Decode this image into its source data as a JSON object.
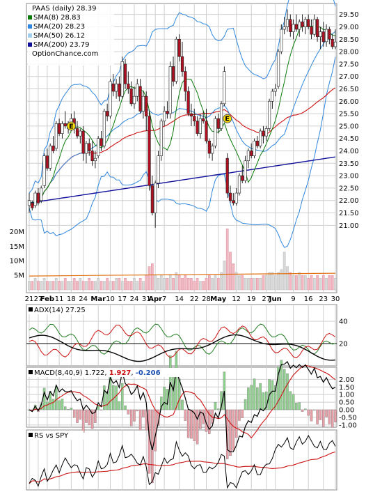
{
  "chart_data": {
    "type": "stock-chart",
    "ticker_label": "PAAS (daily) 28.39",
    "watermark": "OptionChance.com",
    "colors": {
      "sma8": "#0a7a0a",
      "sma20": "#2e86de",
      "sma50": "#e6d84a",
      "sma200": "#10109a",
      "lower_band": "#2e86de",
      "ema": "#cc1111",
      "up": "#e8e8e8",
      "down": "#b01020",
      "adx": "#000000",
      "plus_di": "#1d7a1d",
      "minus_di": "#cc1111",
      "macd": "#000000",
      "signal": "#cc1111",
      "hist_up": "#8fd08f",
      "hist_down": "#e8a0a8",
      "rs": "#000000",
      "rs_ma": "#cc1111",
      "vol_ma": "#e07010"
    },
    "legend": [
      {
        "label": "PAAS (daily) 28.39",
        "color": ""
      },
      {
        "label": "SMA(8) 28.83",
        "color": "#0a7a0a"
      },
      {
        "label": "SMA(20) 28.23",
        "color": "#2e86de"
      },
      {
        "label": "SMA(50) 26.12",
        "color": "#9fd0f0"
      },
      {
        "label": "SMA(200) 23.79",
        "color": "#10109a"
      },
      {
        "label": "OptionChance.com",
        "color": ""
      }
    ],
    "price_axis": [
      "29.50",
      "29.00",
      "28.50",
      "28.00",
      "27.50",
      "27.00",
      "26.50",
      "26.00",
      "25.50",
      "25.00",
      "24.50",
      "24.00",
      "23.50",
      "23.00",
      "22.50",
      "22.00",
      "21.50",
      "21.00"
    ],
    "price_range": [
      20.7,
      29.8
    ],
    "volume_axis": [
      "20M",
      "15M",
      "10M",
      "5M"
    ],
    "volume_max": 22,
    "x_labels": [
      "21",
      "27",
      "Feb",
      "11",
      "18",
      "24",
      "Mar",
      "10",
      "17",
      "24",
      "31",
      "Apr",
      "7",
      "14",
      "22",
      "28",
      "May",
      "12",
      "19",
      "27",
      "Jun",
      "9",
      "16",
      "23",
      "30"
    ],
    "x_label_idx": [
      0,
      3,
      6,
      10,
      14,
      18,
      23,
      27,
      31,
      35,
      39,
      42,
      45,
      50,
      55,
      59,
      63,
      69,
      74,
      79,
      82,
      88,
      93,
      98,
      102
    ],
    "ohlc": [
      [
        21.8,
        22.3,
        21.5,
        22.0
      ],
      [
        21.9,
        22.0,
        21.6,
        21.7
      ],
      [
        21.8,
        22.4,
        21.7,
        22.3
      ],
      [
        22.3,
        22.5,
        21.8,
        21.9
      ],
      [
        22.0,
        22.6,
        21.9,
        22.5
      ],
      [
        22.6,
        23.9,
        22.5,
        23.8
      ],
      [
        23.8,
        24.1,
        23.2,
        23.3
      ],
      [
        23.3,
        24.3,
        23.2,
        24.2
      ],
      [
        24.2,
        24.6,
        23.9,
        24.0
      ],
      [
        24.1,
        25.2,
        24.0,
        25.1
      ],
      [
        25.1,
        25.3,
        24.6,
        24.7
      ],
      [
        24.7,
        25.2,
        24.5,
        25.1
      ],
      [
        25.1,
        25.6,
        24.9,
        25.0
      ],
      [
        24.9,
        25.2,
        24.7,
        25.1
      ],
      [
        25.1,
        25.5,
        24.8,
        25.3
      ],
      [
        25.3,
        25.6,
        24.7,
        24.9
      ],
      [
        24.9,
        25.2,
        24.5,
        24.6
      ],
      [
        24.6,
        24.9,
        24.3,
        24.8
      ],
      [
        24.8,
        25.0,
        23.6,
        23.9
      ],
      [
        23.9,
        24.4,
        23.5,
        24.3
      ],
      [
        24.3,
        24.5,
        23.8,
        24.0
      ],
      [
        24.0,
        24.4,
        23.4,
        23.6
      ],
      [
        23.6,
        24.0,
        23.3,
        23.7
      ],
      [
        23.8,
        24.6,
        23.7,
        24.5
      ],
      [
        24.5,
        24.8,
        24.0,
        24.2
      ],
      [
        24.2,
        25.7,
        24.1,
        25.6
      ],
      [
        25.6,
        25.9,
        25.2,
        25.4
      ],
      [
        25.4,
        26.9,
        25.3,
        26.8
      ],
      [
        26.7,
        27.1,
        26.2,
        26.4
      ],
      [
        26.4,
        26.9,
        26.1,
        26.7
      ],
      [
        26.7,
        27.0,
        26.0,
        26.2
      ],
      [
        26.2,
        27.8,
        26.1,
        27.6
      ],
      [
        27.5,
        27.7,
        26.5,
        26.7
      ],
      [
        26.7,
        27.2,
        26.3,
        26.5
      ],
      [
        26.5,
        26.8,
        25.8,
        25.9
      ],
      [
        25.9,
        26.6,
        25.7,
        26.2
      ],
      [
        26.2,
        26.9,
        26.0,
        26.7
      ],
      [
        26.6,
        26.9,
        25.5,
        25.6
      ],
      [
        25.6,
        26.4,
        25.3,
        26.2
      ],
      [
        26.2,
        26.4,
        24.8,
        25.4
      ],
      [
        25.4,
        25.6,
        22.4,
        22.6
      ],
      [
        22.6,
        23.0,
        21.4,
        21.5
      ],
      [
        21.5,
        22.8,
        20.9,
        22.7
      ],
      [
        22.7,
        24.0,
        22.5,
        23.8
      ],
      [
        23.8,
        25.3,
        23.6,
        25.2
      ],
      [
        25.2,
        25.8,
        25.0,
        25.6
      ],
      [
        25.6,
        26.0,
        25.3,
        25.5
      ],
      [
        25.5,
        27.6,
        25.3,
        27.4
      ],
      [
        27.4,
        27.8,
        26.6,
        26.8
      ],
      [
        26.8,
        28.6,
        26.7,
        28.5
      ],
      [
        28.5,
        28.7,
        27.6,
        27.8
      ],
      [
        27.8,
        28.4,
        27.0,
        27.2
      ],
      [
        27.2,
        27.4,
        26.0,
        26.4
      ],
      [
        26.4,
        26.6,
        25.4,
        25.5
      ],
      [
        25.5,
        25.9,
        25.0,
        25.4
      ],
      [
        25.4,
        25.7,
        25.0,
        25.2
      ],
      [
        25.2,
        25.4,
        24.6,
        24.7
      ],
      [
        24.7,
        25.5,
        24.5,
        25.3
      ],
      [
        25.3,
        25.6,
        25.1,
        25.2
      ],
      [
        25.2,
        25.7,
        24.3,
        24.4
      ],
      [
        24.4,
        24.5,
        23.7,
        23.9
      ],
      [
        23.9,
        24.3,
        23.6,
        24.2
      ],
      [
        24.2,
        25.4,
        24.1,
        25.3
      ],
      [
        25.3,
        25.5,
        24.7,
        24.9
      ],
      [
        24.9,
        26.0,
        24.8,
        25.9
      ],
      [
        25.9,
        27.4,
        25.8,
        27.2
      ],
      [
        23.7,
        23.9,
        22.1,
        22.3
      ],
      [
        22.3,
        22.6,
        21.9,
        22.0
      ],
      [
        22.0,
        22.3,
        21.8,
        21.9
      ],
      [
        21.9,
        22.5,
        21.8,
        22.3
      ],
      [
        22.3,
        23.1,
        22.2,
        23.0
      ],
      [
        23.0,
        23.4,
        22.7,
        22.8
      ],
      [
        22.8,
        23.8,
        22.7,
        23.6
      ],
      [
        23.6,
        24.1,
        23.3,
        24.0
      ],
      [
        24.0,
        24.3,
        23.7,
        23.8
      ],
      [
        23.8,
        24.5,
        23.7,
        24.4
      ],
      [
        24.4,
        24.6,
        24.1,
        24.2
      ],
      [
        24.2,
        24.9,
        24.1,
        24.8
      ],
      [
        24.8,
        25.0,
        24.3,
        24.6
      ],
      [
        24.6,
        25.0,
        24.4,
        24.9
      ],
      [
        24.9,
        26.1,
        24.8,
        26.0
      ],
      [
        26.0,
        26.5,
        25.7,
        26.4
      ],
      [
        26.4,
        26.7,
        26.2,
        26.5
      ],
      [
        26.6,
        28.1,
        26.5,
        28.0
      ],
      [
        28.0,
        29.1,
        27.9,
        28.9
      ],
      [
        28.9,
        29.4,
        28.7,
        29.0
      ],
      [
        29.0,
        29.7,
        28.8,
        29.3
      ],
      [
        29.3,
        29.5,
        28.6,
        28.8
      ],
      [
        28.8,
        29.3,
        28.5,
        29.1
      ],
      [
        29.1,
        29.5,
        28.8,
        28.9
      ],
      [
        28.9,
        29.3,
        28.6,
        29.2
      ],
      [
        29.2,
        29.5,
        28.8,
        29.0
      ],
      [
        29.0,
        29.4,
        28.7,
        29.3
      ],
      [
        29.3,
        29.5,
        28.9,
        29.0
      ],
      [
        29.0,
        29.3,
        28.5,
        28.7
      ],
      [
        28.7,
        29.5,
        28.6,
        29.3
      ],
      [
        29.3,
        29.4,
        28.4,
        28.6
      ],
      [
        28.6,
        29.0,
        28.1,
        28.8
      ],
      [
        28.8,
        29.2,
        28.2,
        28.4
      ],
      [
        28.4,
        29.1,
        28.2,
        28.9
      ],
      [
        28.9,
        29.0,
        28.3,
        28.5
      ],
      [
        28.5,
        28.7,
        28.1,
        28.2
      ],
      [
        28.2,
        28.9,
        28.1,
        28.39
      ]
    ],
    "markers": [
      {
        "label": "E",
        "idx": 14,
        "price": 25.0
      },
      {
        "label": "E",
        "idx": 66,
        "price": 25.3
      }
    ],
    "volume": [
      3,
      3,
      4,
      3,
      3,
      4,
      3,
      3,
      3,
      4,
      3,
      3,
      4,
      3,
      3,
      4,
      3,
      4,
      3,
      3,
      4,
      3,
      3,
      4,
      3,
      3,
      4,
      3,
      3,
      4,
      4,
      3,
      4,
      3,
      3,
      4,
      3,
      4,
      3,
      5,
      8,
      9,
      5,
      4,
      5,
      4,
      4,
      5,
      4,
      6,
      5,
      4,
      5,
      4,
      4,
      3,
      4,
      3,
      3,
      4,
      5,
      4,
      5,
      4,
      6,
      10,
      21,
      13,
      9,
      6,
      5,
      5,
      4,
      4,
      4,
      4,
      4,
      4,
      5,
      5,
      6,
      6,
      5,
      6,
      7,
      13,
      8,
      6,
      5,
      5,
      6,
      5,
      5,
      4,
      5,
      4,
      5,
      4,
      5,
      4,
      5,
      5,
      4
    ],
    "volume_ma_level": 5,
    "panels": {
      "adx": {
        "label": "ADX(14) 27.25",
        "axis": [
          "40",
          "20"
        ]
      },
      "macd": {
        "label_prefix": "MACD(8,40,9) 1.722, ",
        "value_red": "1.927",
        "sep": ", ",
        "value_blue": "-0.206",
        "axis": [
          "2.00",
          "1.50",
          "1.00",
          "0.50",
          "0.00",
          "-0.50",
          "-1.00"
        ]
      },
      "rs": {
        "label": "RS vs SPY"
      }
    }
  }
}
